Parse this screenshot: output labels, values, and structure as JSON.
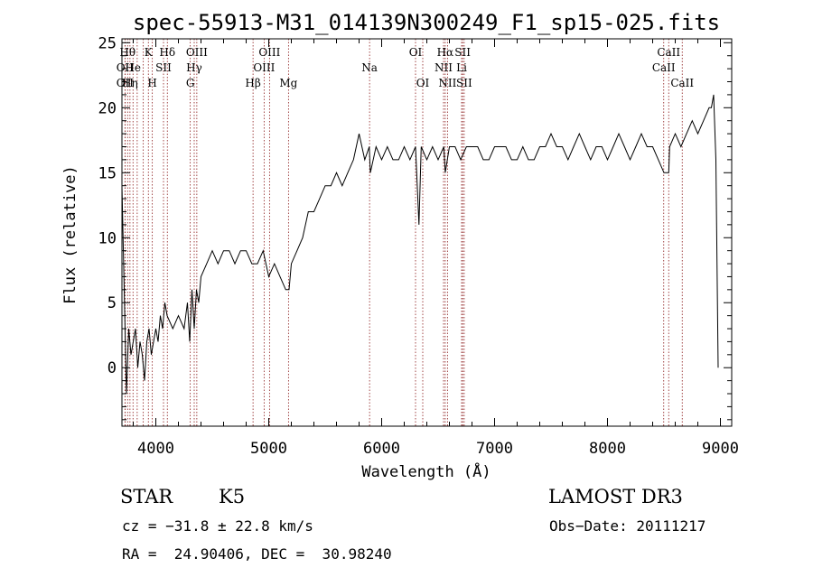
{
  "chart_data": {
    "type": "line",
    "title": "spec-55913-M31_014139N300249_F1_sp15-025.fits",
    "xlabel": "Wavelength (Å)",
    "ylabel": "Flux (relative)",
    "xlim": [
      3700,
      9100
    ],
    "ylim": [
      -4.5,
      25.3
    ],
    "xticks": [
      4000,
      5000,
      6000,
      7000,
      8000,
      9000
    ],
    "yticks": [
      0,
      5,
      10,
      15,
      20,
      25
    ],
    "grid": false,
    "legend": "none",
    "line_color": "#000000",
    "marker_color": "#8b1a1a",
    "series": [
      {
        "x": [
          3700,
          3720,
          3740,
          3760,
          3780,
          3800,
          3820,
          3840,
          3860,
          3880,
          3900,
          3920,
          3940,
          3960,
          3980,
          4000,
          4020,
          4040,
          4060,
          4080,
          4100,
          4150,
          4200,
          4250,
          4280,
          4300,
          4320,
          4340,
          4360,
          4380,
          4400,
          4450,
          4500,
          4550,
          4600,
          4650,
          4700,
          4750,
          4800,
          4850,
          4900,
          4950,
          5000,
          5050,
          5100,
          5150,
          5180,
          5200,
          5250,
          5300,
          5350,
          5400,
          5450,
          5500,
          5550,
          5600,
          5650,
          5700,
          5750,
          5800,
          5850,
          5890,
          5900,
          5950,
          6000,
          6050,
          6100,
          6150,
          6200,
          6250,
          6300,
          6330,
          6350,
          6400,
          6450,
          6500,
          6550,
          6563,
          6600,
          6650,
          6700,
          6750,
          6800,
          6850,
          6900,
          6950,
          7000,
          7050,
          7100,
          7150,
          7200,
          7250,
          7300,
          7350,
          7400,
          7450,
          7500,
          7550,
          7600,
          7650,
          7700,
          7750,
          7800,
          7850,
          7900,
          7950,
          8000,
          8050,
          8100,
          8150,
          8200,
          8250,
          8300,
          8350,
          8400,
          8450,
          8500,
          8542,
          8550,
          8600,
          8650,
          8700,
          8750,
          8800,
          8850,
          8900,
          8920,
          8940,
          8960,
          8980
        ],
        "y": [
          14,
          6,
          -2,
          3,
          1,
          2,
          3,
          0,
          2,
          1,
          -1,
          2,
          3,
          1,
          2,
          3,
          2,
          4,
          3,
          5,
          4,
          3,
          4,
          3,
          5,
          2,
          6,
          3,
          6,
          5,
          7,
          8,
          9,
          8,
          9,
          9,
          8,
          9,
          9,
          8,
          8,
          9,
          7,
          8,
          7,
          6,
          6,
          8,
          9,
          10,
          12,
          12,
          13,
          14,
          14,
          15,
          14,
          15,
          16,
          18,
          16,
          17,
          15,
          17,
          16,
          17,
          16,
          16,
          17,
          16,
          17,
          11,
          17,
          16,
          17,
          16,
          17,
          15,
          17,
          17,
          16,
          17,
          17,
          17,
          16,
          16,
          17,
          17,
          17,
          16,
          16,
          17,
          16,
          16,
          17,
          17,
          18,
          17,
          17,
          16,
          17,
          18,
          17,
          16,
          17,
          17,
          16,
          17,
          18,
          17,
          16,
          17,
          18,
          17,
          17,
          16,
          15,
          15,
          17,
          18,
          17,
          18,
          19,
          18,
          19,
          20,
          20,
          21,
          16,
          0
        ]
      }
    ],
    "line_markers": [
      {
        "wl": 3727,
        "label": "OII",
        "row": 2
      },
      {
        "wl": 3727,
        "label": "OII",
        "row": 3
      },
      {
        "wl": 3750,
        "label": "Hθ",
        "row": 1
      },
      {
        "wl": 3771,
        "label": "Hη",
        "row": 3
      },
      {
        "wl": 3798,
        "label": "He",
        "row": 2
      },
      {
        "wl": 3835,
        "label": "",
        "row": 0
      },
      {
        "wl": 3889,
        "label": "",
        "row": 0
      },
      {
        "wl": 3934,
        "label": "K",
        "row": 1
      },
      {
        "wl": 3969,
        "label": "H",
        "row": 3
      },
      {
        "wl": 4068,
        "label": "SII",
        "row": 2
      },
      {
        "wl": 4102,
        "label": "Hδ",
        "row": 1
      },
      {
        "wl": 4305,
        "label": "G",
        "row": 3
      },
      {
        "wl": 4340,
        "label": "Hγ",
        "row": 2
      },
      {
        "wl": 4363,
        "label": "OIII",
        "row": 1
      },
      {
        "wl": 4861,
        "label": "Hβ",
        "row": 3
      },
      {
        "wl": 4959,
        "label": "OIII",
        "row": 2
      },
      {
        "wl": 5007,
        "label": "OIII",
        "row": 1
      },
      {
        "wl": 5175,
        "label": "Mg",
        "row": 3
      },
      {
        "wl": 5893,
        "label": "Na",
        "row": 2
      },
      {
        "wl": 6300,
        "label": "OI",
        "row": 1
      },
      {
        "wl": 6364,
        "label": "OI",
        "row": 3
      },
      {
        "wl": 6548,
        "label": "NII",
        "row": 2
      },
      {
        "wl": 6563,
        "label": "Hα",
        "row": 1
      },
      {
        "wl": 6583,
        "label": "NII",
        "row": 3
      },
      {
        "wl": 6708,
        "label": "Li",
        "row": 2
      },
      {
        "wl": 6717,
        "label": "SII",
        "row": 1
      },
      {
        "wl": 6731,
        "label": "SII",
        "row": 3
      },
      {
        "wl": 8498,
        "label": "CaII",
        "row": 2
      },
      {
        "wl": 8542,
        "label": "CaII",
        "row": 1
      },
      {
        "wl": 8662,
        "label": "CaII",
        "row": 3
      }
    ]
  },
  "info": {
    "object_class": "STAR",
    "subclass": "K5",
    "survey": "LAMOST DR3",
    "redshift": "cz = −31.8 ± 22.8 km/s",
    "obs_date": "Obs−Date: 20111217",
    "coords": "RA =  24.90406, DEC =  30.98240"
  }
}
